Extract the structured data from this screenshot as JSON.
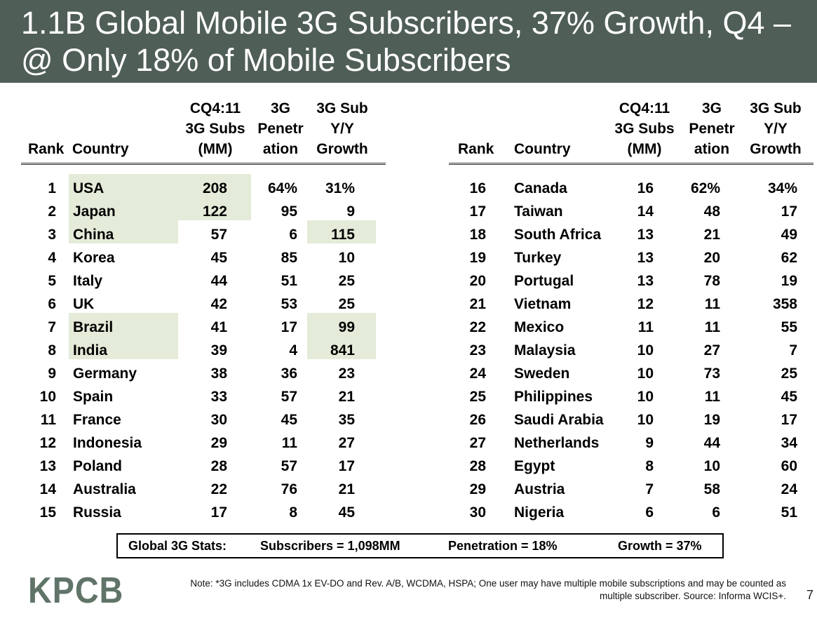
{
  "title": "1.1B Global Mobile 3G Subscribers, 37% Growth, Q4 –\n@ Only 18% of Mobile Subscribers",
  "headers": {
    "rank": "Rank",
    "country": "Country",
    "subs": "CQ4:11\n3G Subs\n(MM)",
    "penetration": "3G\nPenetr\nation",
    "growth": "3G Sub\nY/Y\nGrowth"
  },
  "left_rows": [
    {
      "rank": "1",
      "country": "USA",
      "subs": "208",
      "pen": "64%",
      "growth": "31%"
    },
    {
      "rank": "2",
      "country": "Japan",
      "subs": "122",
      "pen": "95",
      "growth": "9"
    },
    {
      "rank": "3",
      "country": "China",
      "subs": "57",
      "pen": "6",
      "growth": "115"
    },
    {
      "rank": "4",
      "country": "Korea",
      "subs": "45",
      "pen": "85",
      "growth": "10"
    },
    {
      "rank": "5",
      "country": "Italy",
      "subs": "44",
      "pen": "51",
      "growth": "25"
    },
    {
      "rank": "6",
      "country": "UK",
      "subs": "42",
      "pen": "53",
      "growth": "25"
    },
    {
      "rank": "7",
      "country": "Brazil",
      "subs": "41",
      "pen": "17",
      "growth": "99"
    },
    {
      "rank": "8",
      "country": "India",
      "subs": "39",
      "pen": "4",
      "growth": "841"
    },
    {
      "rank": "9",
      "country": "Germany",
      "subs": "38",
      "pen": "36",
      "growth": "23"
    },
    {
      "rank": "10",
      "country": "Spain",
      "subs": "33",
      "pen": "57",
      "growth": "21"
    },
    {
      "rank": "11",
      "country": "France",
      "subs": "30",
      "pen": "45",
      "growth": "35"
    },
    {
      "rank": "12",
      "country": "Indonesia",
      "subs": "29",
      "pen": "11",
      "growth": "27"
    },
    {
      "rank": "13",
      "country": "Poland",
      "subs": "28",
      "pen": "57",
      "growth": "17"
    },
    {
      "rank": "14",
      "country": "Australia",
      "subs": "22",
      "pen": "76",
      "growth": "21"
    },
    {
      "rank": "15",
      "country": "Russia",
      "subs": "17",
      "pen": "8",
      "growth": "45"
    }
  ],
  "right_rows": [
    {
      "rank": "16",
      "country": "Canada",
      "subs": "16",
      "pen": "62%",
      "growth": "34%"
    },
    {
      "rank": "17",
      "country": "Taiwan",
      "subs": "14",
      "pen": "48",
      "growth": "17"
    },
    {
      "rank": "18",
      "country": "South Africa",
      "subs": "13",
      "pen": "21",
      "growth": "49"
    },
    {
      "rank": "19",
      "country": "Turkey",
      "subs": "13",
      "pen": "20",
      "growth": "62"
    },
    {
      "rank": "20",
      "country": "Portugal",
      "subs": "13",
      "pen": "78",
      "growth": "19"
    },
    {
      "rank": "21",
      "country": "Vietnam",
      "subs": "12",
      "pen": "11",
      "growth": "358"
    },
    {
      "rank": "22",
      "country": "Mexico",
      "subs": "11",
      "pen": "11",
      "growth": "55"
    },
    {
      "rank": "23",
      "country": "Malaysia",
      "subs": "10",
      "pen": "27",
      "growth": "7"
    },
    {
      "rank": "24",
      "country": "Sweden",
      "subs": "10",
      "pen": "73",
      "growth": "25"
    },
    {
      "rank": "25",
      "country": "Philippines",
      "subs": "10",
      "pen": "11",
      "growth": "45"
    },
    {
      "rank": "26",
      "country": "Saudi Arabia",
      "subs": "10",
      "pen": "19",
      "growth": "17"
    },
    {
      "rank": "27",
      "country": "Netherlands",
      "subs": "9",
      "pen": "44",
      "growth": "34"
    },
    {
      "rank": "28",
      "country": "Egypt",
      "subs": "8",
      "pen": "10",
      "growth": "60"
    },
    {
      "rank": "29",
      "country": "Austria",
      "subs": "7",
      "pen": "58",
      "growth": "24"
    },
    {
      "rank": "30",
      "country": "Nigeria",
      "subs": "6",
      "pen": "6",
      "growth": "51"
    }
  ],
  "global_stats": {
    "label": "Global 3G Stats:",
    "subscribers": "Subscribers = 1,098MM",
    "penetration": "Penetration = 18%",
    "growth": "Growth = 37%"
  },
  "footer": {
    "logo": "KPCB",
    "note": "Note: *3G includes CDMA 1x EV-DO and Rev. A/B, WCDMA, HSPA; One user may have multiple mobile subscriptions and may be counted as\nmultiple subscriber.  Source: Informa WCIS+.",
    "page_number": "7"
  },
  "colors": {
    "title_bar": "#4f5e57",
    "highlight": "#e4ebd9",
    "logo": "#607468"
  }
}
